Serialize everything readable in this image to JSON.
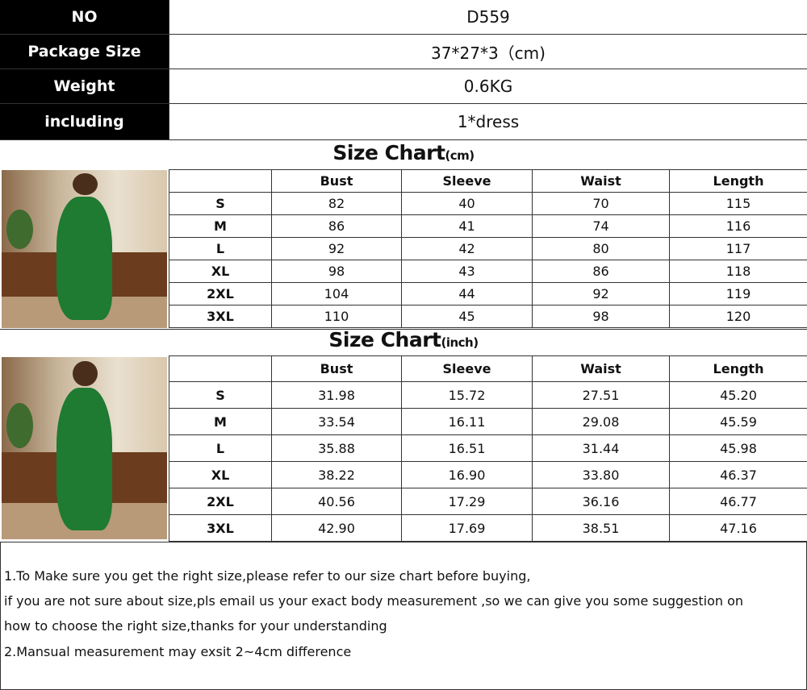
{
  "info": [
    {
      "label": "NO",
      "value": "D559"
    },
    {
      "label": "Package Size",
      "value": "37*27*3（cm)"
    },
    {
      "label": "Weight",
      "value": "0.6KG"
    },
    {
      "label": "including",
      "value": "1*dress"
    }
  ],
  "cm_chart": {
    "title": "Size Chart",
    "unit": "(cm)",
    "headers": [
      "",
      "Bust",
      "Sleeve",
      "Waist",
      "Length"
    ],
    "rows": [
      [
        "S",
        "82",
        "40",
        "70",
        "115"
      ],
      [
        "M",
        "86",
        "41",
        "74",
        "116"
      ],
      [
        "L",
        "92",
        "42",
        "80",
        "117"
      ],
      [
        "XL",
        "98",
        "43",
        "86",
        "118"
      ],
      [
        "2XL",
        "104",
        "44",
        "92",
        "119"
      ],
      [
        "3XL",
        "110",
        "45",
        "98",
        "120"
      ]
    ]
  },
  "inch_chart": {
    "title": "Size Chart",
    "unit": "(inch)",
    "headers": [
      "",
      "Bust",
      "Sleeve",
      "Waist",
      "Length"
    ],
    "rows": [
      [
        "S",
        "31.98",
        "15.72",
        "27.51",
        "45.20"
      ],
      [
        "M",
        "33.54",
        "16.11",
        "29.08",
        "45.59"
      ],
      [
        "L",
        "35.88",
        "16.51",
        "31.44",
        "45.98"
      ],
      [
        "XL",
        "38.22",
        "16.90",
        "33.80",
        "46.37"
      ],
      [
        "2XL",
        "40.56",
        "17.29",
        "36.16",
        "46.77"
      ],
      [
        "3XL",
        "42.90",
        "17.69",
        "38.51",
        "47.16"
      ]
    ]
  },
  "notes": [
    "1.To Make sure you get the right size,please refer to our size chart before buying,",
    "if you are not sure about size,pls email us your exact body measurement ,so we can give you some suggestion on",
    "how to choose the right size,thanks for your understanding",
    "2.Mansual measurement may exsit 2~4cm difference"
  ]
}
